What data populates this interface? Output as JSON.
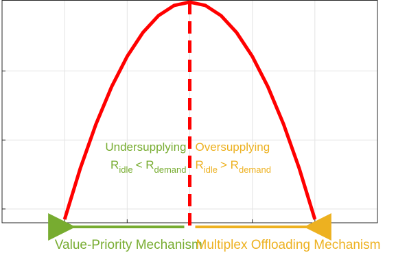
{
  "chart_data": {
    "type": "line",
    "x": [
      1,
      1.25,
      1.5,
      1.75,
      2,
      2.25,
      2.5,
      2.75,
      3,
      3.25,
      3.5,
      3.75,
      4,
      4.25,
      4.5,
      4.75,
      5
    ],
    "series": [
      {
        "color": "#ff0000",
        "values": [
          -0.15,
          0.588,
          1.228,
          1.77,
          2.213,
          2.557,
          2.803,
          2.951,
          3,
          2.951,
          2.803,
          2.557,
          2.213,
          1.77,
          1.228,
          0.588,
          -0.15
        ]
      }
    ],
    "xlim": [
      0,
      6
    ],
    "xticks": [
      1,
      2,
      3,
      4,
      5
    ],
    "ylim": [
      -0.2,
      3.03
    ],
    "yticks": [
      0,
      1,
      2
    ],
    "grid": true,
    "divider": {
      "x": 3,
      "color": "#ff0000"
    },
    "regions": [
      {
        "title": "Undersupplying",
        "condition": [
          "R",
          "idle",
          "< R",
          "demand"
        ],
        "mechanism": "Value-Priority Mechanism",
        "color": "#77ac30",
        "xrange": [
          1,
          3
        ]
      },
      {
        "title": "Oversupplying",
        "condition": [
          "R",
          "idle",
          "> R",
          "demand"
        ],
        "mechanism": "Multiplex Offloading Mechanism",
        "color": "#edb120",
        "xrange": [
          3,
          5
        ]
      }
    ]
  }
}
